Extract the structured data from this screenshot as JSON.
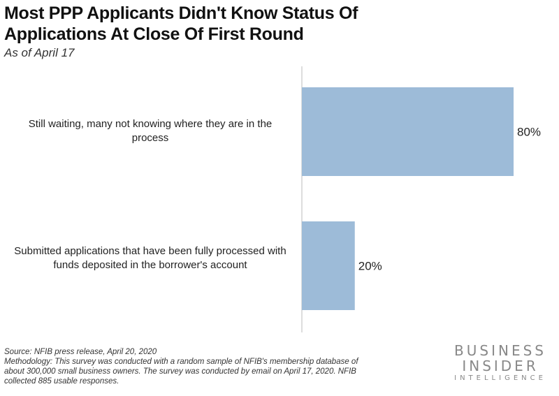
{
  "title_line1": "Most PPP Applicants Didn't Know Status Of",
  "title_line2": "Applications At Close Of First Round",
  "subtitle": "As of April 17",
  "chart_data": {
    "type": "bar",
    "orientation": "horizontal",
    "title": "Most PPP Applicants Didn't Know Status Of Applications At Close Of First Round",
    "subtitle": "As of April 17",
    "categories": [
      "Still waiting, many not knowing where they are in the process",
      "Submitted applications that have been fully processed with funds deposited in the borrower's account"
    ],
    "values": [
      80,
      20
    ],
    "data_labels": [
      "80%",
      "20%"
    ],
    "xlim": [
      0,
      100
    ],
    "grid": false,
    "bar_color": "#9dbbd8"
  },
  "footer": {
    "source": "Source: NFIB press release, April 20, 2020",
    "methodology": "Methodology: This survey was conducted with a random sample of NFIB's membership database of about 300,000 small business owners. The survey was conducted by email on April 17, 2020. NFIB collected 885 usable responses."
  },
  "logo": {
    "line1": "BUSINESS",
    "line2": "INSIDER",
    "line3": "INTELLIGENCE"
  }
}
